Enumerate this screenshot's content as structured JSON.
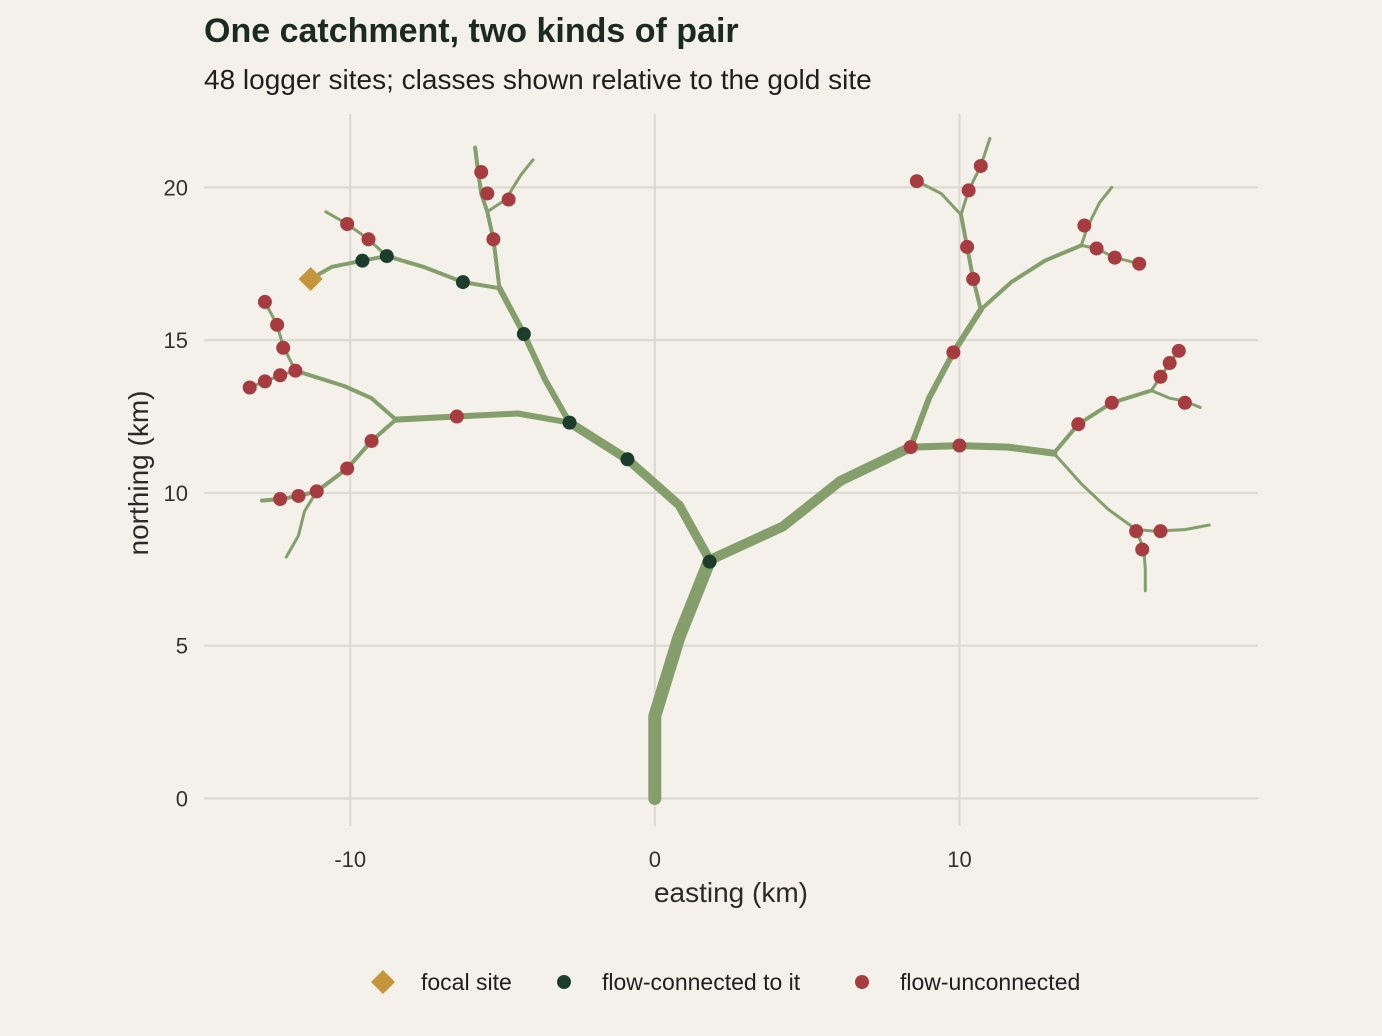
{
  "chart_data": {
    "type": "scatter",
    "title": "One catchment, two kinds of pair",
    "subtitle": "48 logger sites; classes shown relative to the gold site",
    "xlabel": "easting (km)",
    "ylabel": "northing (km)",
    "xlim": [
      -14.8,
      19.8
    ],
    "ylim": [
      -0.9,
      22.4
    ],
    "x_ticks": [
      -10,
      0,
      10
    ],
    "x_tick_labels": [
      "-10",
      "0",
      "10"
    ],
    "y_ticks": [
      0,
      5,
      10,
      15,
      20
    ],
    "y_tick_labels": [
      "0",
      "5",
      "10",
      "15",
      "20"
    ],
    "grid": true,
    "legend_position": "bottom",
    "colors": {
      "background": "#f3f1ea",
      "grid": "#dcdbd3",
      "river": "#849e6c",
      "focal": "#c4953a",
      "connected": "#1d3d2c",
      "unconnected": "#a63c40"
    },
    "legend": [
      {
        "label": "focal site",
        "class": "focal"
      },
      {
        "label": "flow-connected to it",
        "class": "connected"
      },
      {
        "label": "flow-unconnected",
        "class": "unconnected"
      }
    ],
    "river_network": [
      {
        "width": 13,
        "points": [
          [
            0,
            0
          ],
          [
            0,
            2.7
          ],
          [
            0.8,
            5.3
          ],
          [
            1.8,
            7.8
          ]
        ]
      },
      {
        "width": 10,
        "points": [
          [
            1.8,
            7.8
          ],
          [
            4.2,
            8.9
          ],
          [
            6.1,
            10.4
          ],
          [
            8.4,
            11.5
          ]
        ]
      },
      {
        "width": 9,
        "points": [
          [
            1.8,
            7.8
          ],
          [
            0.8,
            9.6
          ],
          [
            -0.9,
            11.1
          ],
          [
            -2.8,
            12.3
          ]
        ]
      },
      {
        "width": 7,
        "points": [
          [
            8.4,
            11.5
          ],
          [
            10.0,
            11.55
          ],
          [
            11.6,
            11.5
          ],
          [
            13.1,
            11.3
          ]
        ]
      },
      {
        "width": 6,
        "points": [
          [
            8.4,
            11.5
          ],
          [
            9.0,
            13.1
          ],
          [
            9.8,
            14.6
          ],
          [
            10.7,
            16.0
          ]
        ]
      },
      {
        "width": 6,
        "points": [
          [
            -2.8,
            12.3
          ],
          [
            -4.5,
            12.6
          ],
          [
            -6.5,
            12.5
          ],
          [
            -8.5,
            12.4
          ]
        ]
      },
      {
        "width": 6,
        "points": [
          [
            -2.8,
            12.3
          ],
          [
            -3.6,
            13.7
          ],
          [
            -4.3,
            15.2
          ],
          [
            -5.1,
            16.7
          ]
        ]
      },
      {
        "width": 4,
        "points": [
          [
            -5.1,
            16.7
          ],
          [
            -6.3,
            16.9
          ],
          [
            -7.6,
            17.4
          ],
          [
            -8.8,
            17.75
          ],
          [
            -9.6,
            17.6
          ],
          [
            -10.6,
            17.4
          ],
          [
            -11.3,
            17.0
          ]
        ]
      },
      {
        "width": 3,
        "points": [
          [
            -8.8,
            17.75
          ],
          [
            -9.4,
            18.3
          ],
          [
            -10.1,
            18.8
          ],
          [
            -10.8,
            19.2
          ]
        ]
      },
      {
        "width": 4,
        "points": [
          [
            -5.1,
            16.7
          ],
          [
            -5.3,
            18.3
          ],
          [
            -5.5,
            19.2
          ],
          [
            -5.7,
            19.8
          ],
          [
            -5.8,
            20.5
          ],
          [
            -5.9,
            21.3
          ]
        ]
      },
      {
        "width": 3,
        "points": [
          [
            -5.5,
            19.2
          ],
          [
            -4.9,
            19.6
          ],
          [
            -4.4,
            20.4
          ],
          [
            -4.0,
            20.9
          ]
        ]
      },
      {
        "width": 4,
        "points": [
          [
            -8.5,
            12.4
          ],
          [
            -9.3,
            13.1
          ],
          [
            -10.2,
            13.5
          ],
          [
            -11.8,
            14.0
          ]
        ]
      },
      {
        "width": 3,
        "points": [
          [
            -11.8,
            14.0
          ],
          [
            -12.3,
            13.85
          ],
          [
            -12.8,
            13.65
          ],
          [
            -13.3,
            13.45
          ]
        ]
      },
      {
        "width": 3,
        "points": [
          [
            -11.8,
            14.0
          ],
          [
            -12.2,
            14.8
          ],
          [
            -12.4,
            15.5
          ],
          [
            -12.8,
            16.25
          ]
        ]
      },
      {
        "width": 4,
        "points": [
          [
            -8.5,
            12.4
          ],
          [
            -9.3,
            11.7
          ],
          [
            -10.1,
            10.8
          ],
          [
            -11.1,
            10.05
          ],
          [
            -11.7,
            9.9
          ],
          [
            -12.3,
            9.8
          ],
          [
            -12.9,
            9.75
          ]
        ]
      },
      {
        "width": 3,
        "points": [
          [
            -11.1,
            10.05
          ],
          [
            -11.5,
            9.4
          ],
          [
            -11.7,
            8.6
          ],
          [
            -12.1,
            7.9
          ]
        ]
      },
      {
        "width": 4,
        "points": [
          [
            10.7,
            16.0
          ],
          [
            11.7,
            16.9
          ],
          [
            12.8,
            17.6
          ],
          [
            14.0,
            18.1
          ]
        ]
      },
      {
        "width": 3,
        "points": [
          [
            14.0,
            18.1
          ],
          [
            14.5,
            18.0
          ],
          [
            15.1,
            17.7
          ],
          [
            15.9,
            17.5
          ]
        ]
      },
      {
        "width": 3,
        "points": [
          [
            14.0,
            18.1
          ],
          [
            14.2,
            18.7
          ],
          [
            14.6,
            19.5
          ],
          [
            15.0,
            20.0
          ]
        ]
      },
      {
        "width": 4,
        "points": [
          [
            10.7,
            16.0
          ],
          [
            10.45,
            17.0
          ],
          [
            10.25,
            18.05
          ],
          [
            10.05,
            19.1
          ]
        ]
      },
      {
        "width": 3,
        "points": [
          [
            10.05,
            19.1
          ],
          [
            9.4,
            19.8
          ],
          [
            8.6,
            20.2
          ]
        ]
      },
      {
        "width": 3,
        "points": [
          [
            10.05,
            19.1
          ],
          [
            10.3,
            19.9
          ],
          [
            10.7,
            20.7
          ],
          [
            11.0,
            21.6
          ]
        ]
      },
      {
        "width": 4,
        "points": [
          [
            13.1,
            11.3
          ],
          [
            13.9,
            12.25
          ],
          [
            15.0,
            12.95
          ],
          [
            16.3,
            13.35
          ]
        ]
      },
      {
        "width": 3,
        "points": [
          [
            16.3,
            13.35
          ],
          [
            16.9,
            13.1
          ],
          [
            17.4,
            13.0
          ],
          [
            17.9,
            12.8
          ]
        ]
      },
      {
        "width": 3,
        "points": [
          [
            16.3,
            13.35
          ],
          [
            16.6,
            13.8
          ],
          [
            16.9,
            14.25
          ],
          [
            17.2,
            14.65
          ]
        ]
      },
      {
        "width": 3,
        "points": [
          [
            13.1,
            11.3
          ],
          [
            14.0,
            10.3
          ],
          [
            14.9,
            9.45
          ],
          [
            15.8,
            8.8
          ],
          [
            16.4,
            8.75
          ],
          [
            17.4,
            8.8
          ],
          [
            18.2,
            8.95
          ]
        ]
      },
      {
        "width": 3,
        "points": [
          [
            15.8,
            8.8
          ],
          [
            16.05,
            8.15
          ],
          [
            16.1,
            7.5
          ],
          [
            16.1,
            6.8
          ]
        ]
      }
    ],
    "sites": [
      {
        "x": -11.3,
        "y": 17.0,
        "class": "focal"
      },
      {
        "x": -9.6,
        "y": 17.6,
        "class": "connected"
      },
      {
        "x": -8.8,
        "y": 17.75,
        "class": "connected"
      },
      {
        "x": -6.3,
        "y": 16.9,
        "class": "connected"
      },
      {
        "x": -4.3,
        "y": 15.2,
        "class": "connected"
      },
      {
        "x": -2.8,
        "y": 12.3,
        "class": "connected"
      },
      {
        "x": -0.9,
        "y": 11.1,
        "class": "connected"
      },
      {
        "x": 1.8,
        "y": 7.75,
        "class": "connected"
      },
      {
        "x": -10.1,
        "y": 18.8,
        "class": "unconnected"
      },
      {
        "x": -9.4,
        "y": 18.3,
        "class": "unconnected"
      },
      {
        "x": -5.7,
        "y": 20.5,
        "class": "unconnected"
      },
      {
        "x": -5.5,
        "y": 19.8,
        "class": "unconnected"
      },
      {
        "x": -4.8,
        "y": 19.6,
        "class": "unconnected"
      },
      {
        "x": -5.3,
        "y": 18.3,
        "class": "unconnected"
      },
      {
        "x": -12.8,
        "y": 16.25,
        "class": "unconnected"
      },
      {
        "x": -12.4,
        "y": 15.5,
        "class": "unconnected"
      },
      {
        "x": -12.2,
        "y": 14.75,
        "class": "unconnected"
      },
      {
        "x": -11.8,
        "y": 14.0,
        "class": "unconnected"
      },
      {
        "x": -12.3,
        "y": 13.85,
        "class": "unconnected"
      },
      {
        "x": -12.8,
        "y": 13.65,
        "class": "unconnected"
      },
      {
        "x": -13.3,
        "y": 13.45,
        "class": "unconnected"
      },
      {
        "x": -6.5,
        "y": 12.5,
        "class": "unconnected"
      },
      {
        "x": -9.3,
        "y": 11.7,
        "class": "unconnected"
      },
      {
        "x": -10.1,
        "y": 10.8,
        "class": "unconnected"
      },
      {
        "x": -11.1,
        "y": 10.05,
        "class": "unconnected"
      },
      {
        "x": -11.7,
        "y": 9.9,
        "class": "unconnected"
      },
      {
        "x": -12.3,
        "y": 9.8,
        "class": "unconnected"
      },
      {
        "x": 8.6,
        "y": 20.2,
        "class": "unconnected"
      },
      {
        "x": 10.3,
        "y": 19.9,
        "class": "unconnected"
      },
      {
        "x": 10.7,
        "y": 20.7,
        "class": "unconnected"
      },
      {
        "x": 10.25,
        "y": 18.05,
        "class": "unconnected"
      },
      {
        "x": 10.45,
        "y": 17.0,
        "class": "unconnected"
      },
      {
        "x": 14.1,
        "y": 18.75,
        "class": "unconnected"
      },
      {
        "x": 14.5,
        "y": 18.0,
        "class": "unconnected"
      },
      {
        "x": 15.1,
        "y": 17.7,
        "class": "unconnected"
      },
      {
        "x": 15.9,
        "y": 17.5,
        "class": "unconnected"
      },
      {
        "x": 9.8,
        "y": 14.6,
        "class": "unconnected"
      },
      {
        "x": 8.4,
        "y": 11.5,
        "class": "unconnected"
      },
      {
        "x": 10.0,
        "y": 11.55,
        "class": "unconnected"
      },
      {
        "x": 13.9,
        "y": 12.25,
        "class": "unconnected"
      },
      {
        "x": 15.0,
        "y": 12.95,
        "class": "unconnected"
      },
      {
        "x": 16.6,
        "y": 13.8,
        "class": "unconnected"
      },
      {
        "x": 16.9,
        "y": 14.25,
        "class": "unconnected"
      },
      {
        "x": 17.2,
        "y": 14.65,
        "class": "unconnected"
      },
      {
        "x": 17.4,
        "y": 12.95,
        "class": "unconnected"
      },
      {
        "x": 15.8,
        "y": 8.75,
        "class": "unconnected"
      },
      {
        "x": 16.6,
        "y": 8.75,
        "class": "unconnected"
      },
      {
        "x": 16.0,
        "y": 8.15,
        "class": "unconnected"
      }
    ]
  }
}
